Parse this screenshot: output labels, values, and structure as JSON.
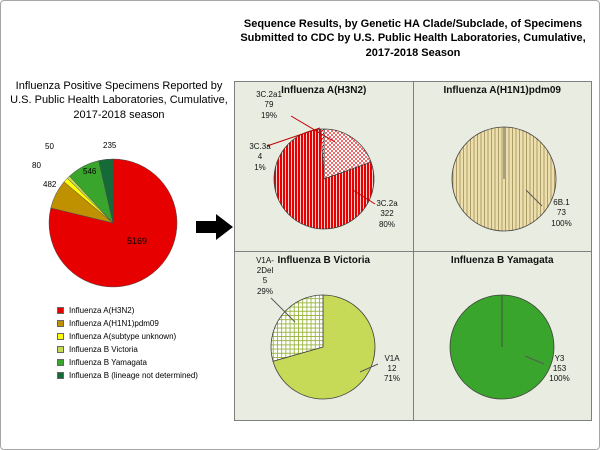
{
  "titles": {
    "left": "Influenza Positive Specimens Reported by U.S. Public Health Laboratories, Cumulative, 2017-2018 season",
    "right": "Sequence Results, by Genetic HA Clade/Subclade, of Specimens Submitted to CDC by U.S. Public Health Laboratories, Cumulative, 2017-2018 Season"
  },
  "chart_data": [
    {
      "id": "flu-positive-overview",
      "type": "pie",
      "title": "Influenza Positive Specimens Reported by U.S. Public Health Laboratories, Cumulative, 2017-2018 season",
      "legend_position": "bottom-left",
      "slices": [
        {
          "label": "Influenza A(H3N2)",
          "value": 5169,
          "color": "#e60000"
        },
        {
          "label": "Influenza A(H1N1)pdm09",
          "value": 482,
          "color": "#bf9000"
        },
        {
          "label": "Influenza A(subtype unknown)",
          "value": 80,
          "color": "#ffff00"
        },
        {
          "label": "Influenza B Victoria",
          "value": 50,
          "color": "#c7da58"
        },
        {
          "label": "Influenza B Yamagata",
          "value": 546,
          "color": "#3aa52c"
        },
        {
          "label": "Influenza B (lineage not determined)",
          "value": 235,
          "color": "#156b38"
        }
      ]
    },
    {
      "id": "a-h3n2-clades",
      "type": "pie",
      "title": "Influenza A(H3N2)",
      "slices": [
        {
          "label": "3C.2a1",
          "value": 79,
          "pct": "19%",
          "pattern": "red-dots",
          "color": "#e60000"
        },
        {
          "label": "3C.2a",
          "value": 322,
          "pct": "80%",
          "pattern": "red-vlines",
          "color": "#e60000"
        },
        {
          "label": "3C.3a",
          "value": 4,
          "pct": "1%",
          "pattern": "red-diag",
          "color": "#e60000"
        }
      ]
    },
    {
      "id": "a-h1n1pdm09-clades",
      "type": "pie",
      "title": "Influenza A(H1N1)pdm09",
      "slices": [
        {
          "label": "6B.1",
          "value": 73,
          "pct": "100%",
          "pattern": "tan-vlines",
          "color": "#ecdfad"
        }
      ]
    },
    {
      "id": "b-victoria-clades",
      "type": "pie",
      "title": "Influenza B Victoria",
      "slices": [
        {
          "label": "V1A",
          "value": 12,
          "pct": "71%",
          "color": "#c7da58"
        },
        {
          "label": "V1A-2Del",
          "value": 5,
          "pct": "29%",
          "pattern": "green-grid",
          "color": "#9ab53e"
        }
      ]
    },
    {
      "id": "b-yamagata-clades",
      "type": "pie",
      "title": "Influenza B Yamagata",
      "slices": [
        {
          "label": "Y3",
          "value": 153,
          "pct": "100%",
          "color": "#3aa52c"
        }
      ]
    }
  ]
}
